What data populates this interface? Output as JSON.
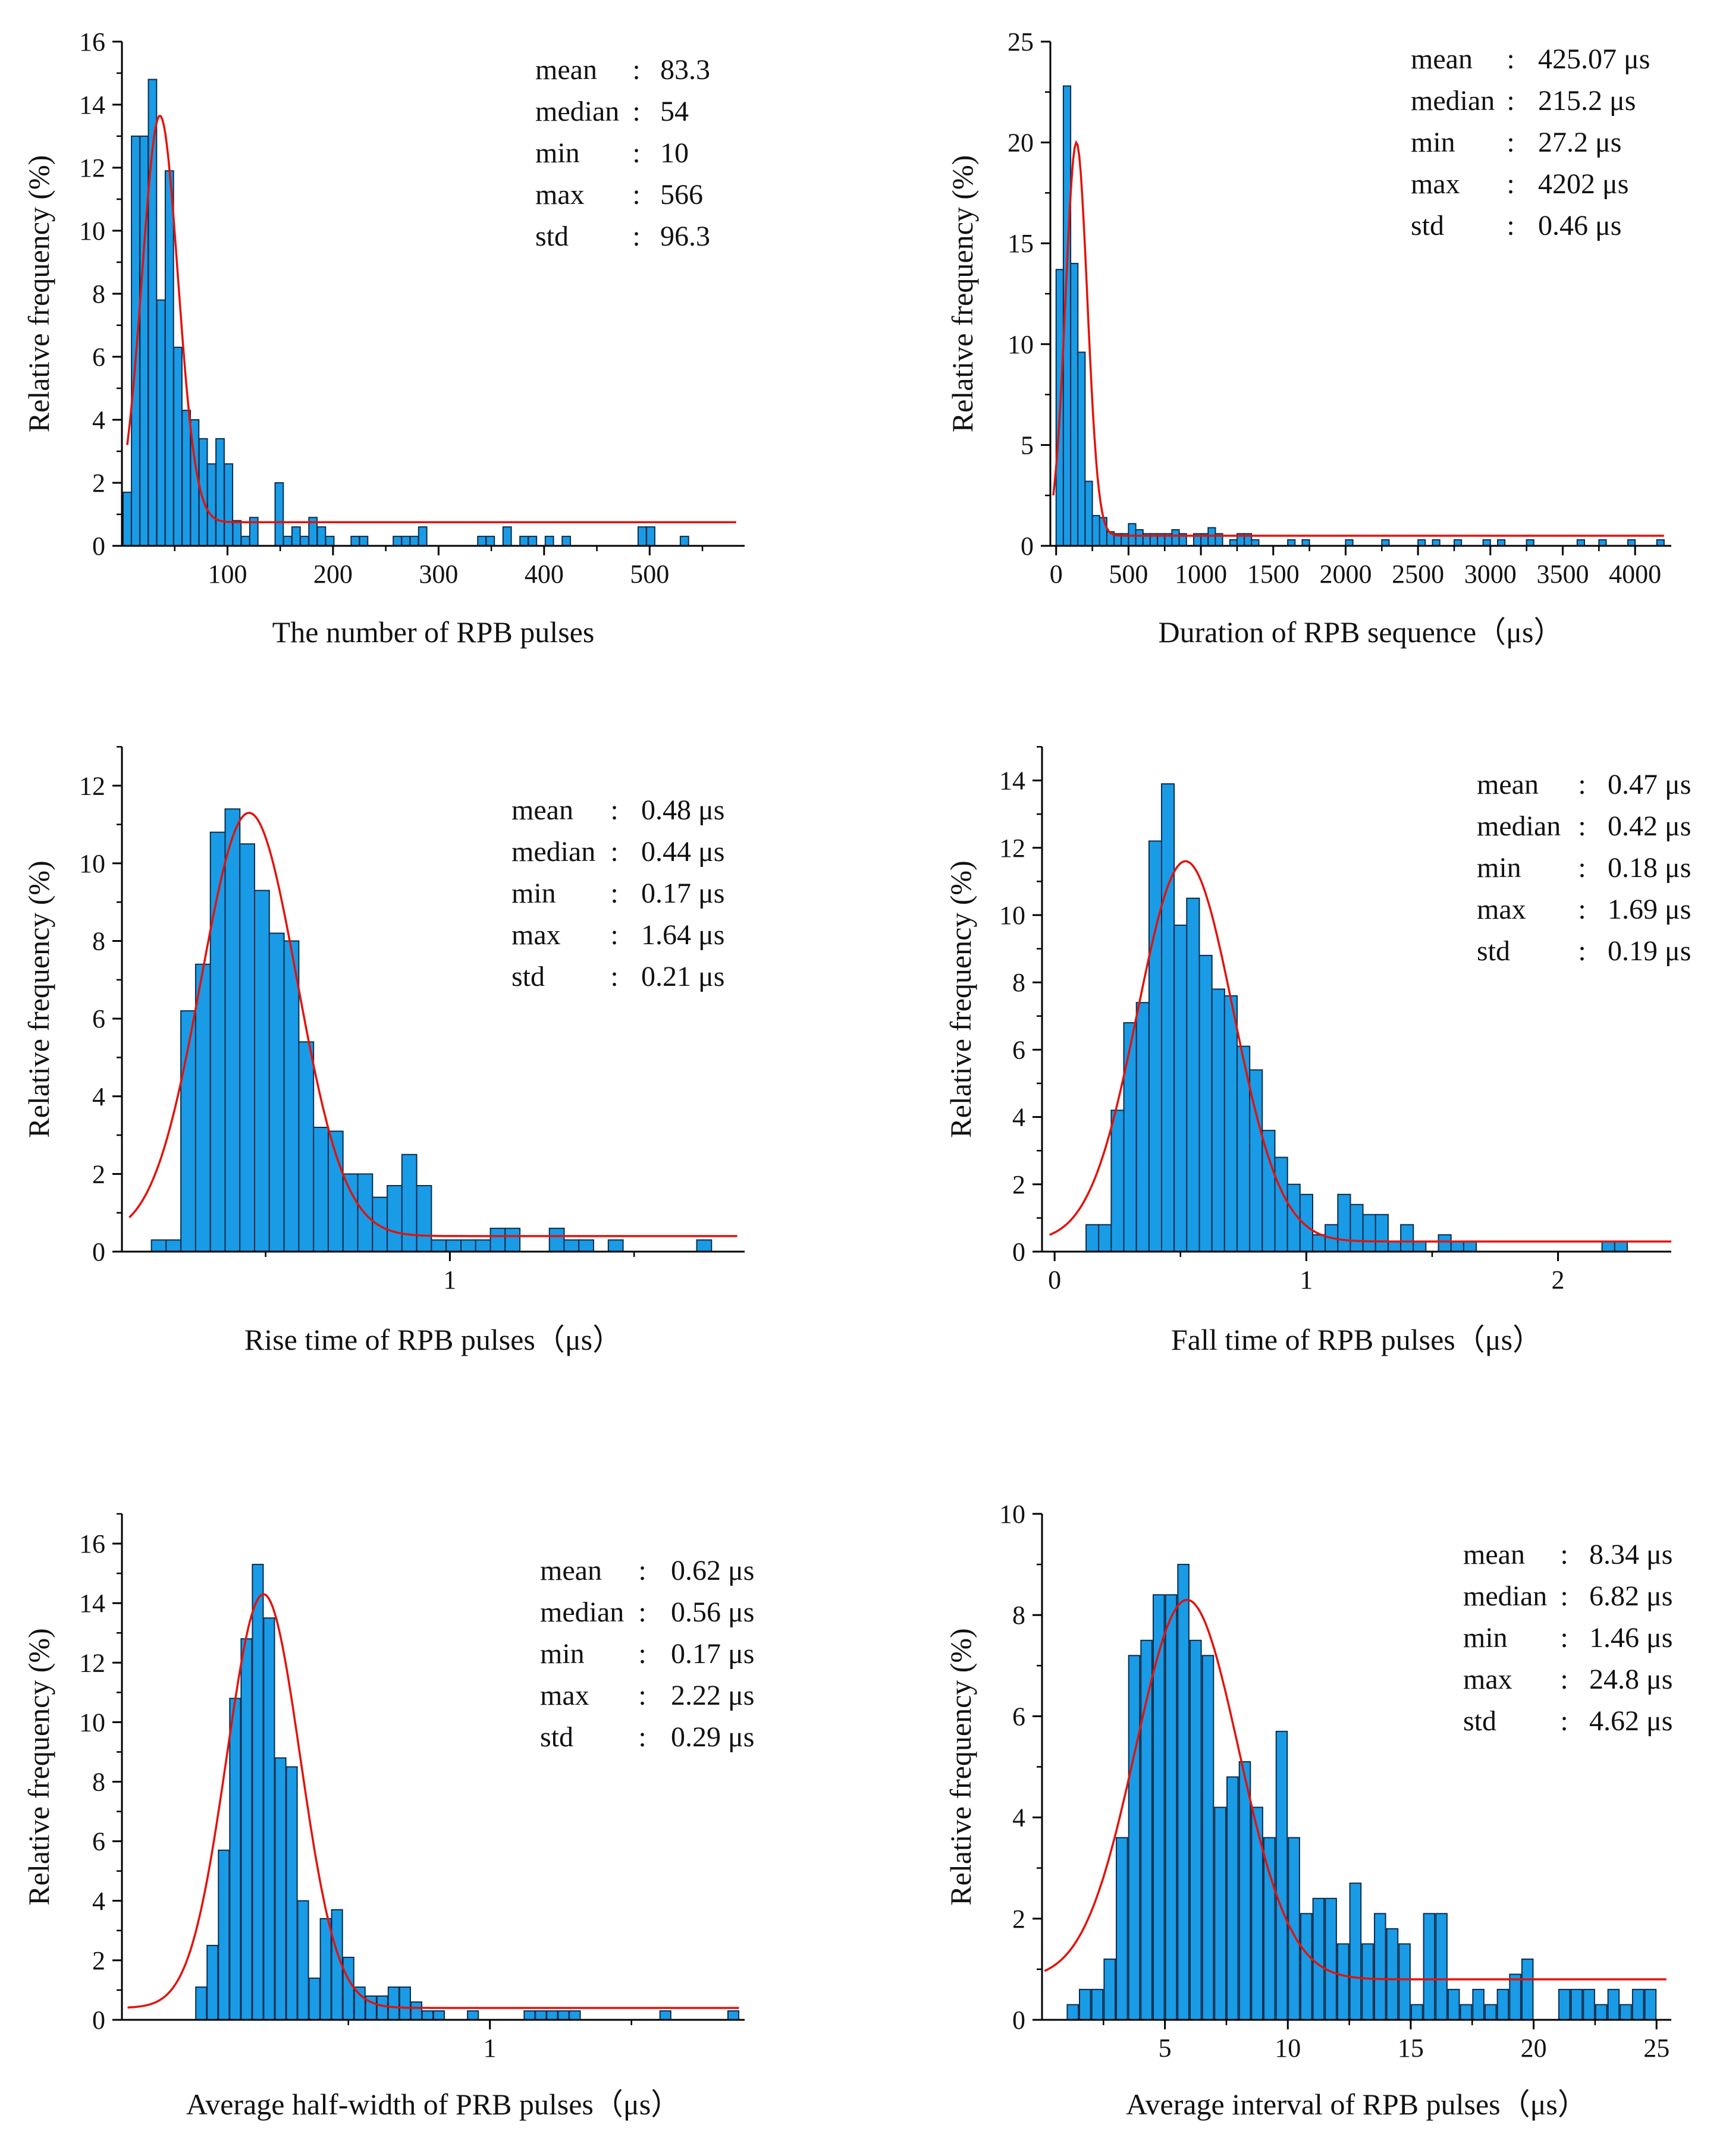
{
  "colors": {
    "bar": "#1a9be6",
    "bar_edge": "#0b2d4d",
    "fit": "#e3120b",
    "axis": "#000000"
  },
  "chart_data": [
    {
      "type": "bar",
      "id": "pulses",
      "xlabel": "The number of RPB pulses",
      "ylabel": "Relative frequency (%)",
      "xlim": [
        0,
        590
      ],
      "ylim": [
        0,
        16
      ],
      "xticks": [
        100,
        200,
        300,
        400,
        500
      ],
      "yticks": [
        0,
        2,
        4,
        6,
        8,
        10,
        12,
        14,
        16
      ],
      "bin_width": 7.8,
      "bin_centers": [
        5,
        13,
        21,
        29,
        37,
        45,
        53,
        61,
        69,
        77,
        85,
        93,
        101,
        109,
        117,
        125,
        133,
        141,
        149,
        157,
        165,
        173,
        181,
        189,
        197,
        205,
        213,
        221,
        229,
        237,
        245,
        253,
        261,
        269,
        277,
        285,
        293,
        301,
        309,
        317,
        325,
        333,
        341,
        349,
        357,
        365,
        373,
        381,
        389,
        397,
        405,
        413,
        421,
        429,
        437,
        445,
        453,
        461,
        469,
        477,
        485,
        493,
        501,
        509,
        517,
        525,
        533,
        541,
        549,
        557,
        565
      ],
      "values": [
        1.7,
        13.0,
        13.0,
        14.8,
        7.8,
        11.9,
        6.3,
        4.3,
        4.0,
        3.4,
        2.6,
        3.4,
        2.6,
        0.8,
        0.3,
        0.9,
        0,
        0,
        2.0,
        0.3,
        0.6,
        0.3,
        0.9,
        0.6,
        0.3,
        0,
        0,
        0.3,
        0.3,
        0,
        0,
        0,
        0.3,
        0.3,
        0.3,
        0.6,
        0,
        0,
        0,
        0,
        0,
        0,
        0.3,
        0.3,
        0,
        0.6,
        0,
        0.3,
        0.3,
        0,
        0.3,
        0,
        0.3,
        0,
        0,
        0,
        0,
        0,
        0,
        0,
        0,
        0.6,
        0.6,
        0,
        0,
        0,
        0.3,
        0,
        0,
        0,
        0
      ],
      "fit": {
        "type": "gauss",
        "y0": 0.75,
        "xc": 36,
        "w": 34,
        "A": 12.9
      },
      "fit_range": [
        5,
        582
      ],
      "stats": [
        {
          "label": "mean",
          "value": "83.3"
        },
        {
          "label": "median",
          "value": "54"
        },
        {
          "label": "min",
          "value": "10"
        },
        {
          "label": "max",
          "value": "566"
        },
        {
          "label": "std",
          "value": "96.3"
        }
      ]
    },
    {
      "type": "bar",
      "id": "duration",
      "xlabel": "Duration of RPB sequence（μs）",
      "ylabel": "Relative frequency (%)",
      "xlim": [
        -40,
        4250
      ],
      "ylim": [
        0,
        25
      ],
      "xticks": [
        0,
        500,
        1000,
        1500,
        2000,
        2500,
        3000,
        3500,
        4000
      ],
      "yticks": [
        0,
        5,
        10,
        15,
        20,
        25
      ],
      "bin_width": 50,
      "bin_centers": [
        25,
        75,
        125,
        175,
        225,
        275,
        325,
        375,
        425,
        475,
        525,
        575,
        625,
        675,
        725,
        775,
        825,
        875,
        925,
        975,
        1025,
        1075,
        1125,
        1175,
        1225,
        1275,
        1325,
        1375,
        1625,
        1725,
        2025,
        2275,
        2525,
        2625,
        2775,
        2975,
        3075,
        3275,
        3625,
        3775,
        3975,
        4175
      ],
      "values": [
        13.7,
        22.8,
        14.0,
        9.6,
        3.2,
        1.5,
        1.4,
        0.7,
        0.6,
        0.6,
        1.1,
        0.8,
        0.6,
        0.6,
        0.6,
        0.6,
        0.8,
        0.6,
        0,
        0.6,
        0.6,
        0.9,
        0.6,
        0,
        0.3,
        0.6,
        0.6,
        0.3,
        0.3,
        0.3,
        0.3,
        0.3,
        0.3,
        0.3,
        0.3,
        0.3,
        0.3,
        0.3,
        0.3,
        0.3,
        0.3,
        0.3
      ],
      "fit": {
        "type": "gauss",
        "y0": 0.5,
        "xc": 140,
        "w": 150,
        "A": 19.5
      },
      "fit_range": [
        -20,
        4200
      ],
      "stats": [
        {
          "label": "mean",
          "value": "425.07 μs"
        },
        {
          "label": "median",
          "value": "215.2  μs"
        },
        {
          "label": "min",
          "value": "27.2   μs"
        },
        {
          "label": "max",
          "value": "4202  μs"
        },
        {
          "label": "std",
          "value": "0.46   μs"
        }
      ]
    },
    {
      "type": "bar",
      "id": "rise",
      "xlabel": "Rise time of RPB pulses（μs）",
      "ylabel": "Relative frequency (%)",
      "xlim": [
        0.11,
        1.8
      ],
      "ylim": [
        0,
        13
      ],
      "xticks": [
        1
      ],
      "yticks": [
        0,
        2,
        4,
        6,
        8,
        10,
        12
      ],
      "bin_width": 0.04,
      "bin_centers": [
        0.21,
        0.25,
        0.29,
        0.33,
        0.37,
        0.41,
        0.45,
        0.49,
        0.53,
        0.57,
        0.61,
        0.65,
        0.69,
        0.73,
        0.77,
        0.81,
        0.85,
        0.89,
        0.93,
        0.97,
        1.01,
        1.05,
        1.09,
        1.13,
        1.17,
        1.21,
        1.25,
        1.29,
        1.33,
        1.37,
        1.41,
        1.45,
        1.49,
        1.53,
        1.57,
        1.61,
        1.65,
        1.69
      ],
      "values": [
        0.3,
        0.3,
        6.2,
        7.4,
        10.8,
        11.4,
        10.5,
        9.3,
        8.2,
        8.0,
        5.4,
        3.2,
        3.1,
        2.0,
        2.0,
        1.4,
        1.7,
        2.5,
        1.7,
        0.3,
        0.3,
        0.3,
        0.3,
        0.6,
        0.6,
        0,
        0,
        0.6,
        0.3,
        0.3,
        0,
        0.3,
        0,
        0,
        0,
        0,
        0,
        0.3
      ],
      "fit": {
        "type": "gauss",
        "y0": 0.4,
        "xc": 0.455,
        "w": 0.26,
        "A": 10.9
      },
      "fit_range": [
        0.13,
        1.78
      ],
      "stats": [
        {
          "label": "mean",
          "value": "0.48 μs"
        },
        {
          "label": "median",
          "value": "0.44 μs"
        },
        {
          "label": "min",
          "value": "0.17 μs"
        },
        {
          "label": "max",
          "value": "1.64 μs"
        },
        {
          "label": "std",
          "value": "0.21 μs"
        }
      ]
    },
    {
      "type": "bar",
      "id": "fall",
      "xlabel": "Fall time of RPB pulses（μs）",
      "ylabel": "Relative frequency (%)",
      "xlim": [
        -0.05,
        2.45
      ],
      "ylim": [
        0,
        15
      ],
      "xticks": [
        0,
        1,
        2
      ],
      "yticks": [
        0,
        2,
        4,
        6,
        8,
        10,
        12,
        14
      ],
      "bin_width": 0.05,
      "bin_centers": [
        0.15,
        0.2,
        0.25,
        0.3,
        0.35,
        0.4,
        0.45,
        0.5,
        0.55,
        0.6,
        0.65,
        0.7,
        0.75,
        0.8,
        0.85,
        0.9,
        0.95,
        1.0,
        1.05,
        1.1,
        1.15,
        1.2,
        1.25,
        1.3,
        1.35,
        1.4,
        1.45,
        1.5,
        1.55,
        1.6,
        1.65,
        1.7,
        2.2,
        2.25
      ],
      "values": [
        0.8,
        0.8,
        4.2,
        6.8,
        7.4,
        12.2,
        13.9,
        9.7,
        10.5,
        8.8,
        7.8,
        7.6,
        6.1,
        5.4,
        3.6,
        2.8,
        2.0,
        1.7,
        0.5,
        0.8,
        1.7,
        1.4,
        1.1,
        1.1,
        0.3,
        0.8,
        0.3,
        0,
        0.5,
        0.3,
        0.3,
        0,
        0.3,
        0.3
      ],
      "fit": {
        "type": "gauss",
        "y0": 0.3,
        "xc": 0.52,
        "w": 0.38,
        "A": 11.3
      },
      "fit_range": [
        -0.02,
        2.45
      ],
      "stats": [
        {
          "label": "mean",
          "value": "0.47 μs"
        },
        {
          "label": "median",
          "value": "0.42 μs"
        },
        {
          "label": "min",
          "value": "0.18 μs"
        },
        {
          "label": "max",
          "value": "1.69 μs"
        },
        {
          "label": "std",
          "value": "0.19 μs"
        }
      ]
    },
    {
      "type": "bar",
      "id": "halfwidth",
      "xlabel": "Average half-width of PRB pulses（μs）",
      "ylabel": "Relative frequency (%)",
      "xlim": [
        -0.3,
        1.9
      ],
      "ylim": [
        0,
        17
      ],
      "xticks": [
        1
      ],
      "yticks": [
        0,
        2,
        4,
        6,
        8,
        10,
        12,
        14,
        16
      ],
      "bin_width": 0.038,
      "bin_centers": [
        -0.02,
        0.02,
        0.06,
        0.1,
        0.14,
        0.18,
        0.22,
        0.26,
        0.3,
        0.34,
        0.38,
        0.42,
        0.46,
        0.5,
        0.54,
        0.58,
        0.62,
        0.66,
        0.7,
        0.74,
        0.78,
        0.82,
        0.86,
        0.9,
        0.94,
        0.98,
        1.02,
        1.06,
        1.1,
        1.14,
        1.18,
        1.22,
        1.26,
        1.3,
        1.34,
        1.38,
        1.42,
        1.46,
        1.5,
        1.54,
        1.58,
        1.62,
        1.66,
        1.7,
        1.74,
        1.78,
        1.82,
        1.86
      ],
      "values": [
        1.1,
        2.5,
        5.7,
        10.8,
        12.8,
        15.3,
        13.5,
        8.8,
        8.5,
        4.0,
        1.4,
        3.4,
        3.7,
        2.1,
        1.1,
        0.8,
        0.8,
        1.1,
        1.1,
        0.6,
        0.3,
        0.3,
        0,
        0,
        0.3,
        0,
        0,
        0,
        0,
        0.3,
        0.3,
        0.3,
        0.3,
        0.3,
        0,
        0,
        0,
        0,
        0,
        0,
        0,
        0.3,
        0,
        0,
        0,
        0,
        0,
        0.3
      ],
      "fit": {
        "type": "gauss",
        "y0": 0.4,
        "xc": 0.2,
        "w": 0.26,
        "A": 13.9
      },
      "fit_range": [
        -0.28,
        1.88
      ],
      "stats": [
        {
          "label": "mean",
          "value": "0.62 μs"
        },
        {
          "label": "median",
          "value": "0.56 μs"
        },
        {
          "label": "min",
          "value": "0.17 μs"
        },
        {
          "label": "max",
          "value": "2.22 μs"
        },
        {
          "label": "std",
          "value": "0.29 μs"
        }
      ]
    },
    {
      "type": "bar",
      "id": "interval",
      "xlabel": "Average interval of RPB pulses（μs）",
      "ylabel": "Relative frequency (%)",
      "xlim": [
        0,
        25.6
      ],
      "ylim": [
        0,
        10
      ],
      "xticks": [
        5,
        10,
        15,
        20,
        25
      ],
      "yticks": [
        0,
        2,
        4,
        6,
        8,
        10
      ],
      "bin_width": 0.45,
      "bin_centers": [
        1.25,
        1.75,
        2.25,
        2.75,
        3.25,
        3.75,
        4.25,
        4.75,
        5.25,
        5.75,
        6.25,
        6.75,
        7.25,
        7.75,
        8.25,
        8.75,
        9.25,
        9.75,
        10.25,
        10.75,
        11.25,
        11.75,
        12.25,
        12.75,
        13.25,
        13.75,
        14.25,
        14.75,
        15.25,
        15.75,
        16.25,
        16.75,
        17.25,
        17.75,
        18.25,
        18.75,
        19.25,
        19.75,
        20.25,
        20.75,
        21.25,
        21.75,
        22.25,
        22.75,
        23.25,
        23.75,
        24.25,
        24.75
      ],
      "values": [
        0.3,
        0.6,
        0.6,
        1.2,
        3.6,
        7.2,
        7.5,
        8.4,
        8.4,
        9.0,
        7.5,
        7.2,
        4.2,
        4.8,
        5.1,
        4.2,
        3.6,
        5.7,
        3.6,
        2.1,
        2.4,
        2.4,
        1.5,
        2.7,
        1.5,
        2.1,
        1.8,
        1.5,
        0.3,
        2.1,
        2.1,
        0.6,
        0.3,
        0.6,
        0.3,
        0.6,
        0.9,
        1.2,
        0,
        0,
        0.6,
        0.6,
        0.6,
        0.3,
        0.6,
        0.3,
        0.6,
        0.6
      ],
      "fit": {
        "type": "gauss",
        "y0": 0.8,
        "xc": 5.9,
        "w": 4.2,
        "A": 7.5
      },
      "fit_range": [
        0.1,
        25.4
      ],
      "stats": [
        {
          "label": "mean",
          "value": "8.34 μs"
        },
        {
          "label": "median",
          "value": "6.82 μs"
        },
        {
          "label": "min",
          "value": "1.46 μs"
        },
        {
          "label": "max",
          "value": "24.8 μs"
        },
        {
          "label": "std",
          "value": "4.62 μs"
        }
      ]
    }
  ]
}
